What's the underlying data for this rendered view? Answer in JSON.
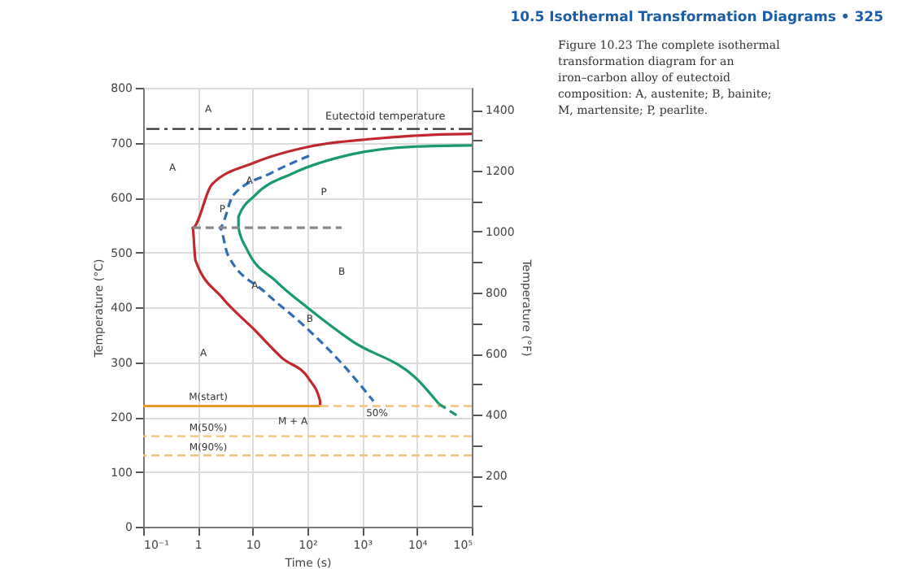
{
  "chart_data": {
    "type": "line",
    "xlabel": "Time (s)",
    "ylabel": "Temperature (°C)",
    "y2label": "Temperature (°F)",
    "log": "x",
    "grid": true,
    "xlim": [
      0.1,
      100000
    ],
    "xticks": [
      {
        "value": 0.1,
        "label": "10⁻¹"
      },
      1,
      10,
      {
        "value": 100,
        "label": "10²"
      },
      {
        "value": 1000,
        "label": "10³"
      },
      {
        "value": 10000,
        "label": "10⁴"
      },
      {
        "value": 100000,
        "label": "10⁵"
      }
    ],
    "ylim": [
      0,
      800
    ],
    "yticks": [
      0,
      100,
      200,
      300,
      400,
      500,
      600,
      700,
      800
    ],
    "y2lim": [
      32,
      1472
    ],
    "y2ticks": [
      {
        "value": 100,
        "label": null
      },
      200,
      {
        "value": 300,
        "label": null
      },
      400,
      {
        "value": 500,
        "label": null
      },
      600,
      {
        "value": 700,
        "label": null
      },
      800,
      {
        "value": 900,
        "label": null
      },
      1000,
      {
        "value": 1100,
        "label": null
      },
      1200,
      {
        "value": 1300,
        "label": null
      },
      1400
    ],
    "series": [
      {
        "color": "#c0282d",
        "line_style": "solid",
        "x": [
          100000,
          16000,
          1600,
          110,
          11,
          1.8,
          0.8,
          0.9,
          2.8,
          11,
          34,
          107,
          170,
          170
        ],
        "values": [
          716,
          714,
          707,
          693,
          664,
          624,
          545,
          486,
          417,
          358,
          308,
          269,
          229,
          222
        ]
      },
      {
        "color": "#1a9a6c",
        "line_style": "solid",
        "x": [
          100000,
          10000,
          660,
          54,
          11,
          5.5,
          5.5,
          7.8,
          27,
          107,
          660,
          10000,
          25000
        ],
        "values": [
          695,
          693,
          679,
          644,
          604,
          565,
          545,
          506,
          447,
          397,
          338,
          269,
          224
        ]
      },
      {
        "color": "#1a9a6c",
        "line_style": "dashed",
        "x": [
          25000,
          63000
        ],
        "values": [
          224,
          198
        ]
      },
      {
        "color": "#2f6db5",
        "line_style": "dashed",
        "x": [
          107,
          21,
          4.4,
          2.5,
          3.5,
          17,
          85,
          420,
          1600
        ],
        "values": [
          676,
          644,
          604,
          545,
          496,
          427,
          367,
          298,
          229
        ]
      },
      {
        "color": "#888888",
        "line_style": "dashed",
        "x": [
          0.8,
          420
        ],
        "values": [
          545,
          545
        ]
      },
      {
        "color": "#e8962e",
        "line_style": "solid",
        "x": [
          0.1,
          170
        ],
        "values": [
          220,
          220
        ]
      }
    ],
    "ref_lines": [
      {
        "axis": "y",
        "value": 725,
        "label": "Eutectoid temperature",
        "color": "#333333",
        "line_style": "dashdot"
      },
      {
        "axis": "y",
        "value": 220,
        "label": null,
        "color": "#f2c27a",
        "line_style": "dashed"
      },
      {
        "axis": "y",
        "value": 165,
        "label": null,
        "color": "#f2c27a",
        "line_style": "dashed"
      },
      {
        "axis": "y",
        "value": 130,
        "label": null,
        "color": "#f2c27a",
        "line_style": "dashed"
      }
    ],
    "annotations": [
      "A",
      "A",
      "P",
      "B",
      "A",
      "M(start)",
      "M + A",
      "M(50%)",
      "M(90%)",
      {
        "text": "P",
        "x": 2.8,
        "y": 580
      },
      {
        "text": "A",
        "x": 8.7,
        "y": 631
      },
      {
        "text": "A",
        "x": 11,
        "y": 440
      },
      {
        "text": "B",
        "x": 110,
        "y": 380
      },
      {
        "text": "50%",
        "x": 1860,
        "y": 207
      }
    ],
    "title": "10.5 Isothermal Transformation Diagrams  •  325",
    "subtitle": "Figure 10.23  The complete isothermal transformation diagram for an iron–carbon alloy of eutectoid composition: A, austenite; B, bainite; M, martensite; P, pearlite."
  }
}
